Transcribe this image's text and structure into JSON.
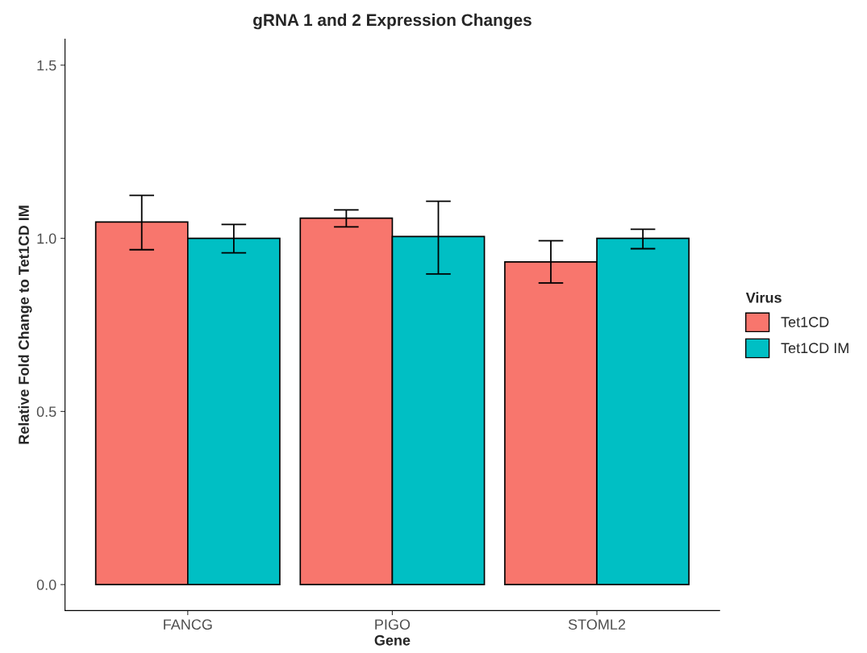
{
  "chart_data": {
    "type": "bar",
    "title": "gRNA 1 and 2 Expression Changes",
    "xlabel": "Gene",
    "ylabel": "Relative Fold Change to Tet1CD IM",
    "legend_title": "Virus",
    "categories": [
      "FANCG",
      "PIGO",
      "STOML2"
    ],
    "series": [
      {
        "name": "Tet1CD",
        "color": "#f8766d",
        "values": [
          1.047,
          1.058,
          0.932
        ],
        "errors": [
          [
            0.967,
            1.124
          ],
          [
            1.033,
            1.082
          ],
          [
            0.871,
            0.993
          ]
        ]
      },
      {
        "name": "Tet1CD IM",
        "color": "#00bfc4",
        "values": [
          1.0,
          1.005,
          1.0
        ],
        "errors": [
          [
            0.958,
            1.04
          ],
          [
            0.897,
            1.107
          ],
          [
            0.97,
            1.026
          ]
        ]
      }
    ],
    "ylim": [
      -0.075,
      1.575
    ],
    "yticks": [
      {
        "value": 0,
        "label": "0.0"
      },
      {
        "value": 0.5,
        "label": "0.5"
      },
      {
        "value": 1,
        "label": "1.0"
      },
      {
        "value": 1.5,
        "label": "1.5"
      }
    ],
    "grid": false,
    "legend": "right"
  }
}
